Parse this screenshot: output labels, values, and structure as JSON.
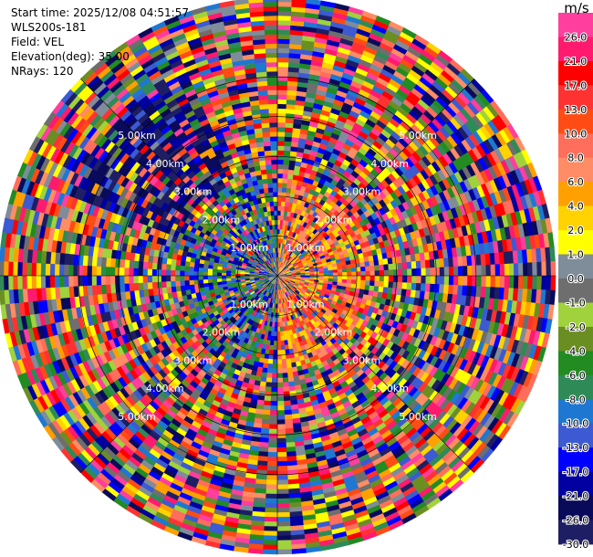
{
  "info": {
    "start_time": "Start time: 2025/12/08 04:51:57",
    "instrument": "WLS200s-181",
    "field": "Field: VEL",
    "elevation": "Elevation(deg): 35.00",
    "nrays": "NRays: 120"
  },
  "chart_data": {
    "type": "heatmap",
    "projection": "polar-ppi",
    "title": "",
    "n_rays": 120,
    "n_gates": 60,
    "range_rings_km": [
      1.0,
      2.0,
      3.0,
      4.0,
      5.0
    ],
    "ring_labels": [
      "1.00km",
      "2.00km",
      "3.00km",
      "4.00km",
      "5.00km"
    ],
    "max_range_km": 7.0,
    "azimuth_spokes_deg": [
      0,
      45,
      90,
      135,
      180,
      225,
      270,
      315
    ],
    "grid": true,
    "pattern_note": "near-range positive (red/orange) velocities to the east, negative (blue) to the west; outer ranges noisy across full scale",
    "colorbar": {
      "unit": "m/s",
      "placement": "right",
      "tick_labels": [
        "26.0",
        "21.0",
        "17.0",
        "13.0",
        "10.0",
        "8.0",
        "6.0",
        "4.0",
        "2.0",
        "1.0",
        "0.0",
        "-1.0",
        "-2.0",
        "-4.0",
        "-6.0",
        "-8.0",
        "-10.0",
        "-13.0",
        "-17.0",
        "-21.0",
        "-26.0",
        "-30.0"
      ],
      "colors": [
        "#ff3e9e",
        "#ff1a6e",
        "#ff0000",
        "#ff3232",
        "#ff4b14",
        "#ff6e5a",
        "#ff8c64",
        "#ffa000",
        "#ffd200",
        "#ffff00",
        "#7f8c99",
        "#6e6e6e",
        "#a0d23c",
        "#6b8e23",
        "#228b22",
        "#2e8b57",
        "#1e78d2",
        "#3c5ad2",
        "#0000ff",
        "#0000a0",
        "#0a0a5a",
        "#1e1e64"
      ]
    }
  }
}
